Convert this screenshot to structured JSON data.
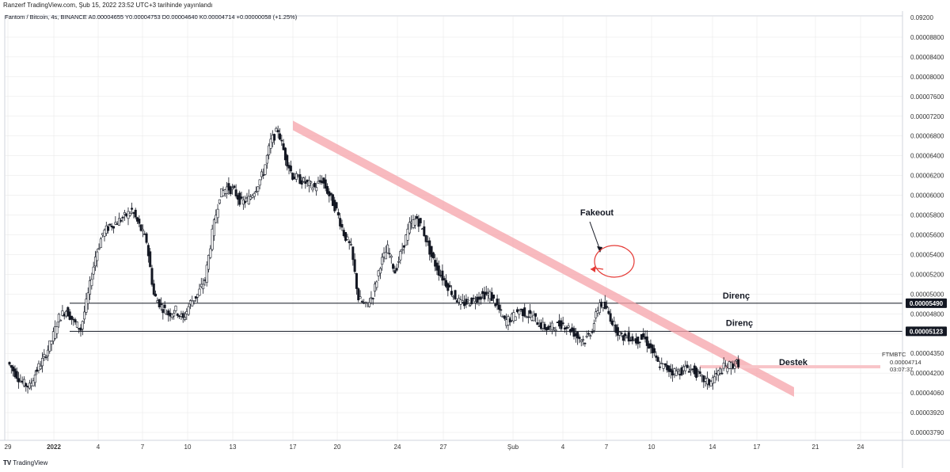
{
  "header": {
    "publish_line": "Ranzerf TradingView.com, Şub 15, 2022 23:52 UTC+3 tarihinde yayınlandı"
  },
  "legend": {
    "symbol_line": "Fantom / Bitcoin, 4s, BINANCE A0.00004655 Y0.00004753 D0.00004640 K0.00004714 +0.00000058 (+1.25%)"
  },
  "footer": {
    "brand": "TradingView",
    "logo_glyph": "TV"
  },
  "colors": {
    "up": "#131722",
    "down": "#131722",
    "trend_band": "#f5a3a9",
    "support_band": "#f8c4c8",
    "fakeout_circle": "#e53935",
    "level_line": "#131722",
    "grid": "#e6e6e6",
    "axis_text": "#333333"
  },
  "chart_data": {
    "type": "candlestick",
    "symbol": "FTMBTC",
    "y_axis": {
      "unit": "BTC",
      "ylim": [
        3.7e-05,
        9.24e-05
      ],
      "tick_labels": [
        "0.00008800",
        "0.00008400",
        "0.00008000",
        "0.00007600",
        "0.00007200",
        "0.00006800",
        "0.00006400",
        "0.00006200",
        "0.00006000",
        "0.00005800",
        "0.00005600",
        "0.00005400",
        "0.00005200",
        "0.00005000",
        "0.00004800",
        "0.00004500",
        "0.00004350",
        "0.00004200",
        "0.00004060",
        "0.00003920",
        "0.00003790"
      ],
      "top_label": "0.00009200",
      "top_unit_label": "BTC"
    },
    "x_axis": {
      "tick_labels": [
        "29",
        "2022",
        "4",
        "7",
        "10",
        "13",
        "17",
        "20",
        "24",
        "27",
        "Şub",
        "4",
        "7",
        "10",
        "14",
        "17",
        "21",
        "24"
      ]
    },
    "price_badges": [
      {
        "label": "0.00005490",
        "value": 5.49e-05
      },
      {
        "label": "0.00005123",
        "value": 5.123e-05
      }
    ],
    "last_price": {
      "symbol": "FTMBTC",
      "price": "0.00004714",
      "countdown": "03:07:37",
      "value": 4.714e-05
    },
    "levels": [
      {
        "name": "Direnç",
        "value": 5.49e-05,
        "kind": "resistance"
      },
      {
        "name": "Direnç",
        "value": 5.123e-05,
        "kind": "resistance"
      },
      {
        "name": "Destek",
        "value": 4.66e-05,
        "kind": "support"
      }
    ],
    "annotations": [
      {
        "text": "Fakeout"
      }
    ],
    "trendline": {
      "from_value": 7.81e-05,
      "to_value": 4.33e-05
    },
    "close_path": [
      4.72e-05,
      4.58e-05,
      4.45e-05,
      4.4e-05,
      4.62e-05,
      4.78e-05,
      5e-05,
      5.3e-05,
      5.4e-05,
      5.25e-05,
      5.15e-05,
      5.6e-05,
      6.1e-05,
      6.4e-05,
      6.5e-05,
      6.55e-05,
      6.62e-05,
      6.7e-05,
      6.5e-05,
      6.3e-05,
      5.6e-05,
      5.45e-05,
      5.35e-05,
      5.4e-05,
      5.28e-05,
      5.5e-05,
      5.6e-05,
      5.8e-05,
      6.4e-05,
      6.9e-05,
      7e-05,
      6.95e-05,
      6.8e-05,
      6.85e-05,
      7e-05,
      7.2e-05,
      7.6e-05,
      7.75e-05,
      7.4e-05,
      7.15e-05,
      7.1e-05,
      7.05e-05,
      7e-05,
      7.1e-05,
      6.9e-05,
      6.7e-05,
      6.4e-05,
      6.2e-05,
      5.55e-05,
      5.45e-05,
      5.6e-05,
      6e-05,
      6.2e-05,
      5.9e-05,
      6.2e-05,
      6.5e-05,
      6.6e-05,
      6.4e-05,
      6.1e-05,
      5.9e-05,
      5.75e-05,
      5.6e-05,
      5.48e-05,
      5.5e-05,
      5.55e-05,
      5.6e-05,
      5.6e-05,
      5.45e-05,
      5.25e-05,
      5.3e-05,
      5.4e-05,
      5.35e-05,
      5.3e-05,
      5.2e-05,
      5.15e-05,
      5.2e-05,
      5.22e-05,
      5.15e-05,
      5.05e-05,
      5e-05,
      5.15e-05,
      5.5e-05,
      5.4e-05,
      5.2e-05,
      5.05e-05,
      5.05e-05,
      5e-05,
      5.05e-05,
      4.9e-05,
      4.7e-05,
      4.65e-05,
      4.6e-05,
      4.6e-05,
      4.65e-05,
      4.6e-05,
      4.5e-05,
      4.45e-05,
      4.55e-05,
      4.65e-05,
      4.68e-05,
      4.71e-05
    ],
    "grid": true
  }
}
